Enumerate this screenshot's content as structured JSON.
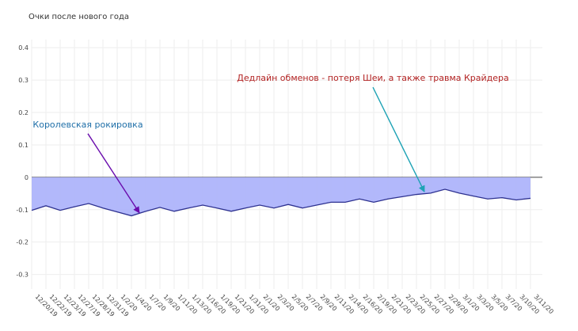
{
  "chart_data": {
    "type": "area",
    "title": "Очки после нового года",
    "categories": [
      "12/20/19",
      "12/22/19",
      "12/23/19",
      "12/27/19",
      "12/28/19",
      "12/31/19",
      "1/2/20",
      "1/4/20",
      "1/7/20",
      "1/9/20",
      "1/11/20",
      "1/13/20",
      "1/16/20",
      "1/19/20",
      "1/21/20",
      "1/31/20",
      "2/1/20",
      "2/3/20",
      "2/5/20",
      "2/7/20",
      "2/9/20",
      "2/11/20",
      "2/14/20",
      "2/16/20",
      "2/19/20",
      "2/21/20",
      "2/23/20",
      "2/25/20",
      "2/27/20",
      "2/29/20",
      "3/1/20",
      "3/3/20",
      "3/5/20",
      "3/7/20",
      "3/10/20",
      "3/11/20"
    ],
    "values": [
      -0.102,
      -0.088,
      -0.102,
      -0.091,
      -0.081,
      -0.095,
      -0.107,
      -0.119,
      -0.105,
      -0.093,
      -0.105,
      -0.095,
      -0.086,
      -0.095,
      -0.105,
      -0.095,
      -0.086,
      -0.095,
      -0.084,
      -0.095,
      -0.086,
      -0.077,
      -0.077,
      -0.067,
      -0.077,
      -0.067,
      -0.06,
      -0.053,
      -0.049,
      -0.037,
      -0.049,
      -0.058,
      -0.067,
      -0.063,
      -0.07,
      -0.065
    ],
    "color": "#2d3190",
    "fill_color": "#aab0fb",
    "ylim": [
      -0.345,
      0.425
    ],
    "yticks": [
      -0.3,
      -0.2,
      -0.1,
      0,
      0.1,
      0.2,
      0.3,
      0.4
    ],
    "grid": true,
    "annotations": [
      {
        "text": "Королевская рокировка",
        "x": "1/4/20",
        "y": -0.105,
        "color": "#1f6fa8",
        "arrow_color": "#6a0dad"
      },
      {
        "text": "Дедлайн обменов - потеря Шеи,  а также травма Крайдера",
        "x": "2/25/20",
        "y": -0.04,
        "color": "#b22222",
        "arrow_color": "#1fa3b5"
      }
    ]
  }
}
